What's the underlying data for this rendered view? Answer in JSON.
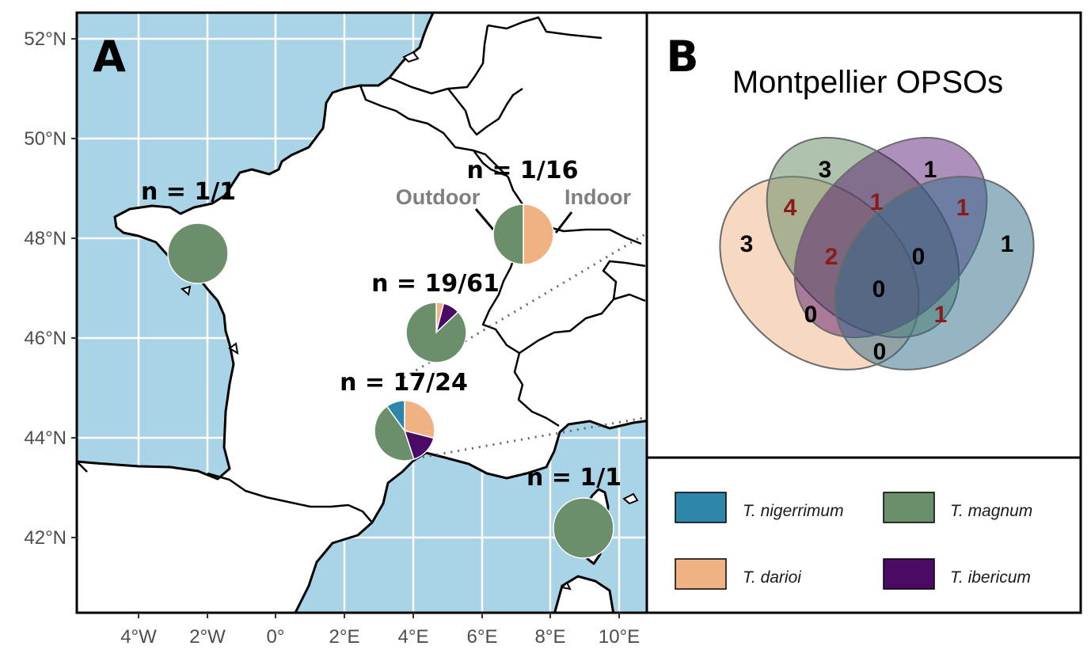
{
  "panel_a": {
    "label": "A",
    "lat_ticks": [
      "52°N",
      "50°N",
      "48°N",
      "46°N",
      "44°N",
      "42°N"
    ],
    "lon_ticks": [
      "4°W",
      "2°W",
      "0°",
      "2°E",
      "4°E",
      "6°E",
      "8°E",
      "10°E"
    ],
    "colors": {
      "sea": "#a9d3e6",
      "land": "#ffffff",
      "grid": "#ffffff",
      "border": "#000000"
    },
    "sites": [
      {
        "label": "n = 1/1",
        "composition": {
          "T. magnum": 1
        }
      },
      {
        "label": "n = 1/16",
        "composition": {
          "T. magnum": 0.5,
          "T. darioi": 0.5
        },
        "left_label": "Outdoor",
        "right_label": "Indoor"
      },
      {
        "label": "n = 19/61",
        "composition": {
          "T. darioi": 0.04,
          "T. ibericum": 0.09,
          "T. magnum": 0.87
        }
      },
      {
        "label": "n = 17/24",
        "composition": {
          "T. darioi": 0.29,
          "T. ibericum": 0.16,
          "T. magnum": 0.45,
          "T. nigerrimum": 0.1
        }
      },
      {
        "label": "n = 1/1",
        "composition": {
          "T. magnum": 1
        }
      }
    ]
  },
  "panel_b": {
    "label": "B",
    "title": "Montpellier OPSOs",
    "venn_values": [
      "3",
      "1",
      "3",
      "1",
      "4",
      "1",
      "1",
      "2",
      "0",
      "0",
      "0",
      "1",
      "0"
    ],
    "colors": {
      "black_number": "#000000",
      "red_number": "#8b1a1a"
    }
  },
  "legend": {
    "items": [
      {
        "name": "T. nigerrimum",
        "color": "#2e86ab"
      },
      {
        "name": "T. magnum",
        "color": "#6b8f6b"
      },
      {
        "name": "T. darioi",
        "color": "#f0b183"
      },
      {
        "name": "T. ibericum",
        "color": "#4b0a66"
      }
    ]
  }
}
